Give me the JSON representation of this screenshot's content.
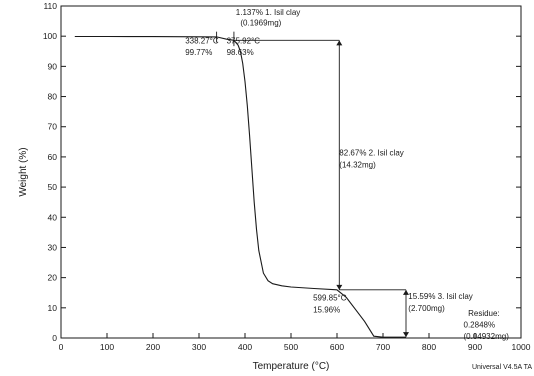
{
  "chart_data": {
    "type": "line",
    "xlabel": "Temperature (°C)",
    "ylabel": "Weight (%)",
    "xlim": [
      0,
      1000
    ],
    "ylim": [
      0,
      110
    ],
    "x_ticks": [
      "0",
      "100",
      "200",
      "300",
      "400",
      "500",
      "600",
      "700",
      "800",
      "900",
      "1000"
    ],
    "y_ticks": [
      "0",
      "10",
      "20",
      "30",
      "40",
      "50",
      "60",
      "70",
      "80",
      "90",
      "100",
      "110"
    ],
    "x_tick_values": [
      0,
      100,
      200,
      300,
      400,
      500,
      600,
      700,
      800,
      900,
      1000
    ],
    "y_tick_values": [
      0,
      10,
      20,
      30,
      40,
      50,
      60,
      70,
      80,
      90,
      100,
      110
    ],
    "grid": false,
    "series": [
      {
        "x": [
          30,
          100,
          200,
          300,
          338.27,
          360,
          375.92,
          385,
          390,
          395,
          400,
          405,
          410,
          415,
          420,
          425,
          430,
          440,
          450,
          460,
          480,
          500,
          550,
          599.85,
          620,
          640,
          660,
          680,
          700,
          750
        ],
        "y": [
          99.9,
          99.9,
          99.85,
          99.8,
          99.77,
          99.0,
          98.63,
          97.0,
          95.0,
          91.0,
          85.0,
          77.0,
          67.0,
          56.0,
          45.0,
          36.0,
          29.0,
          21.5,
          19.0,
          18.0,
          17.3,
          16.9,
          16.4,
          15.96,
          13.5,
          9.5,
          5.5,
          0.6,
          0.28,
          0.28
        ]
      }
    ],
    "annotations": [
      {
        "text": "1.137% 1. Isil clay",
        "x": 380,
        "y": 107
      },
      {
        "text": "(0.1969mg)",
        "x": 390,
        "y": 103.6
      },
      {
        "text": "338.27°C",
        "x": 270,
        "y": 97.5
      },
      {
        "text": "99.77%",
        "x": 270,
        "y": 93.7
      },
      {
        "text": "375.92°C",
        "x": 360,
        "y": 97.5
      },
      {
        "text": "98.63%",
        "x": 360,
        "y": 93.7
      },
      {
        "text": "82.67% 2. Isil clay",
        "x": 605,
        "y": 60.5
      },
      {
        "text": "(14.32mg)",
        "x": 605,
        "y": 56.5
      },
      {
        "text": "599.85°C",
        "x": 548,
        "y": 12.4
      },
      {
        "text": "15.96%",
        "x": 548,
        "y": 8.5
      },
      {
        "text": "15.59% 3. Isil clay",
        "x": 755,
        "y": 13.0
      },
      {
        "text": "(2.700mg)",
        "x": 755,
        "y": 9.0
      },
      {
        "text": "Residue:",
        "x": 885,
        "y": 7.3
      },
      {
        "text": "0.2848%",
        "x": 875,
        "y": 3.5
      },
      {
        "text": "(0.04932mg)",
        "x": 875,
        "y": -0.3
      }
    ]
  },
  "footer": {
    "instrument": "Universal V4.5A TA"
  }
}
